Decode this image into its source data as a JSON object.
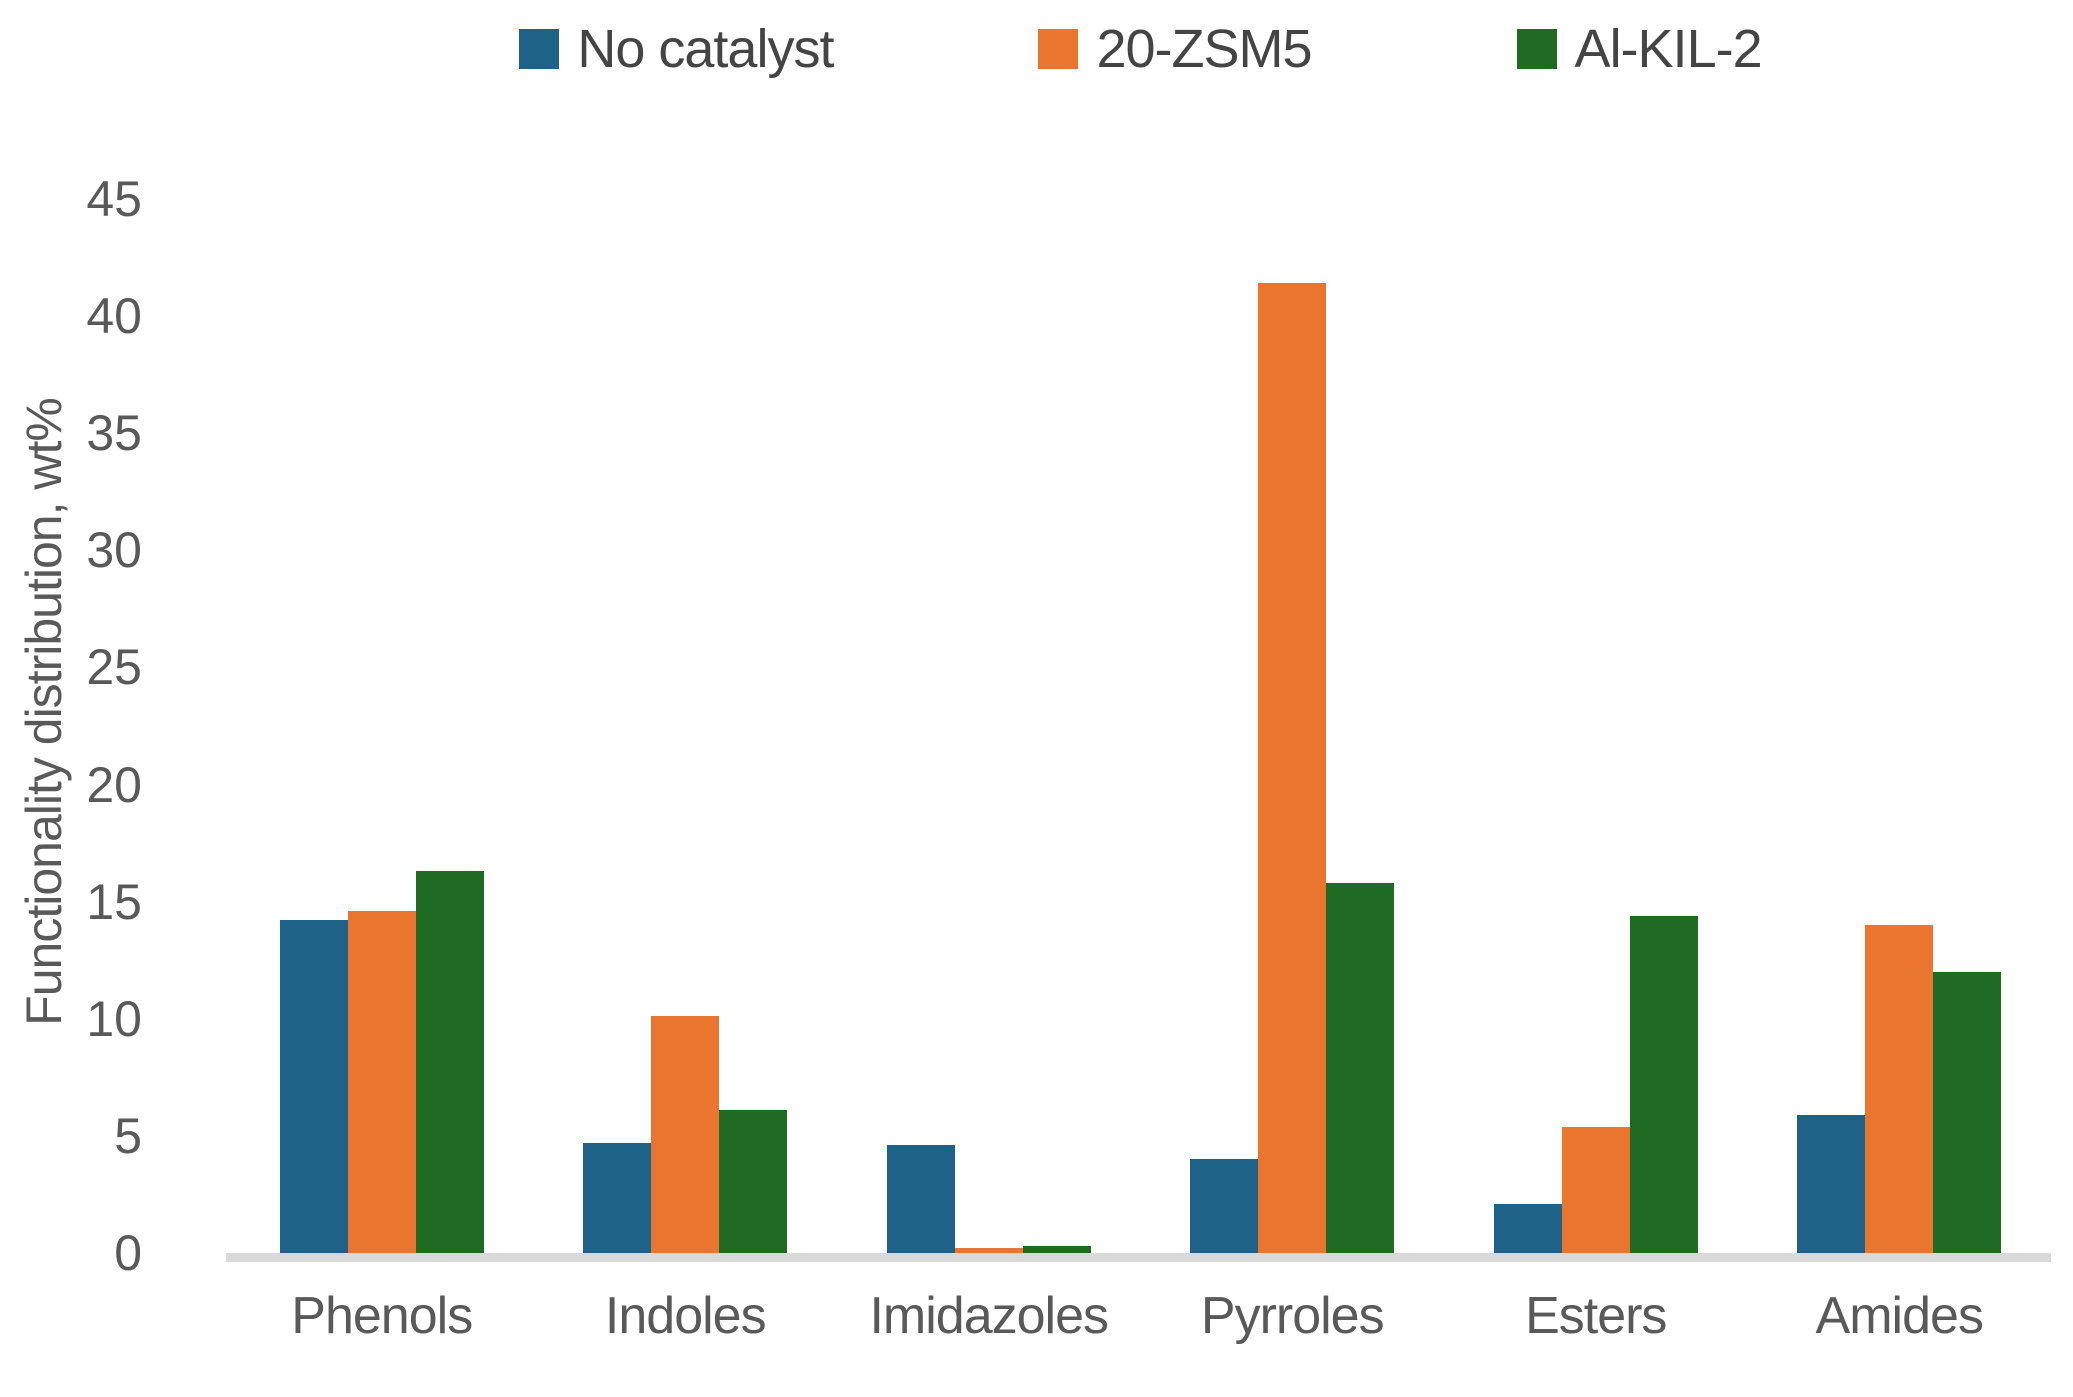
{
  "chart_data": {
    "type": "bar",
    "title": "",
    "xlabel": "",
    "ylabel": "Functionality distribution, wt%",
    "ylim": [
      0,
      45
    ],
    "ytick_step": 5,
    "grid": false,
    "legend_position": "top",
    "categories": [
      "Phenols",
      "Indoles",
      "Imidazoles",
      "Pyrroles",
      "Esters",
      "Amides"
    ],
    "series": [
      {
        "name": "No catalyst",
        "color": "#1E6387",
        "values": [
          14.2,
          4.7,
          4.6,
          4.0,
          2.1,
          5.9
        ]
      },
      {
        "name": "20-ZSM5",
        "color": "#EA752F",
        "values": [
          14.6,
          10.1,
          0.2,
          41.4,
          5.4,
          14.0
        ]
      },
      {
        "name": "Al-KIL-2",
        "color": "#1F6B24",
        "values": [
          16.3,
          6.1,
          0.3,
          15.8,
          14.4,
          12.0
        ]
      }
    ]
  },
  "colors": {
    "axis_line": "#D9D9D9",
    "tick_text": "#595959",
    "legend_text": "#444444",
    "background": "#FFFFFF"
  }
}
